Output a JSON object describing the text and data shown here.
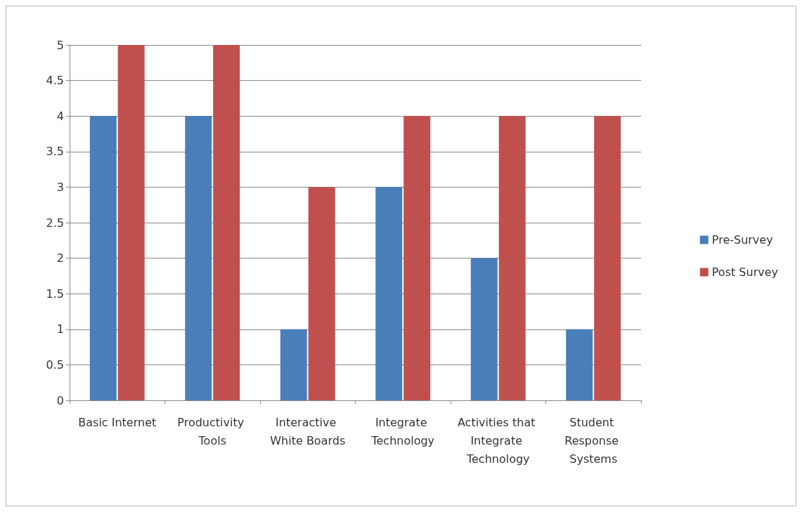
{
  "chart_data": {
    "type": "bar",
    "categories": [
      "Basic Internet",
      "Productivity Tools",
      "Interactive White Boards",
      "Integrate Technology",
      "Activities that Integrate Technology",
      "Student Response Systems"
    ],
    "series": [
      {
        "name": "Pre-Survey",
        "color": "#4a7ebb",
        "values": [
          4,
          4,
          1,
          3,
          2,
          1
        ]
      },
      {
        "name": "Post Survey",
        "color": "#c0504d",
        "values": [
          5,
          5,
          3,
          4,
          4,
          4
        ]
      }
    ],
    "ylim": [
      0,
      5
    ],
    "yticks": [
      0,
      0.5,
      1,
      1.5,
      2,
      2.5,
      3,
      3.5,
      4,
      4.5,
      5
    ],
    "grid": "y",
    "legend": "right"
  }
}
